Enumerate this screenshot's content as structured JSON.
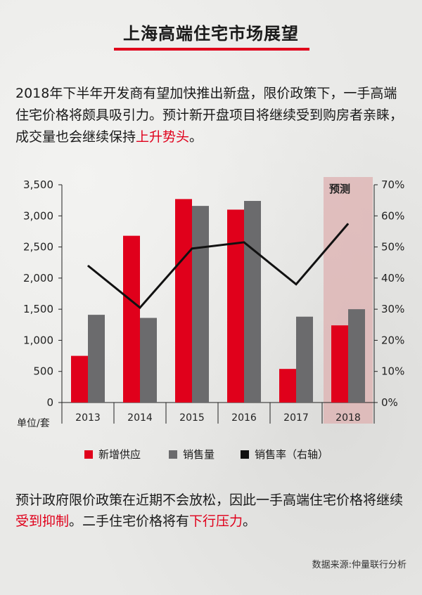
{
  "title": "上海高端住宅市场展望",
  "intro": {
    "text": "2018年下半年开发商有望加快推出新盘，限价政策下，一手高端住宅价格将颇具吸引力。预计新开盘项目将继续受到购房者亲睐，成交量也会继续保持",
    "highlight": "上升势头",
    "suffix": "。"
  },
  "conclusion": {
    "part1": "预计政府限价政策在近期不会放松，因此一手高端住宅价格将继续",
    "highlight1": "受到抑制",
    "part2": "。二手住宅价格将有",
    "highlight2": "下行压力",
    "part3": "。"
  },
  "source": "数据来源:仲量联行分析",
  "colors": {
    "supply": "#e0001b",
    "sales": "#6b6b6d",
    "rate": "#111111",
    "forecast_band": "#ddb0b0",
    "accent": "#e0001b"
  },
  "chart_data": {
    "type": "bar",
    "categories": [
      "2013",
      "2014",
      "2015",
      "2016",
      "2017",
      "2018"
    ],
    "series": [
      {
        "name": "新增供应",
        "type": "bar",
        "axis": "left",
        "values": [
          750,
          2680,
          3270,
          3100,
          540,
          1240
        ]
      },
      {
        "name": "销售量",
        "type": "bar",
        "axis": "left",
        "values": [
          1410,
          1360,
          3160,
          3240,
          1380,
          1500
        ]
      },
      {
        "name": "销售率（右轴）",
        "type": "line",
        "axis": "right",
        "values": [
          44,
          30.5,
          49.5,
          51.5,
          38,
          57.5
        ]
      }
    ],
    "y_left": {
      "min": 0,
      "max": 3500,
      "ticks": [
        "0",
        "500",
        "1,000",
        "1,500",
        "2,000",
        "2,500",
        "3,000",
        "3,500"
      ]
    },
    "y_right": {
      "min": 0,
      "max": 70,
      "ticks": [
        "0%",
        "10%",
        "20%",
        "30%",
        "40%",
        "50%",
        "60%",
        "70%"
      ]
    },
    "unit_label": "单位/套",
    "forecast": {
      "label": "预测",
      "category": "2018"
    },
    "legend_position": "bottom",
    "grid": false
  }
}
